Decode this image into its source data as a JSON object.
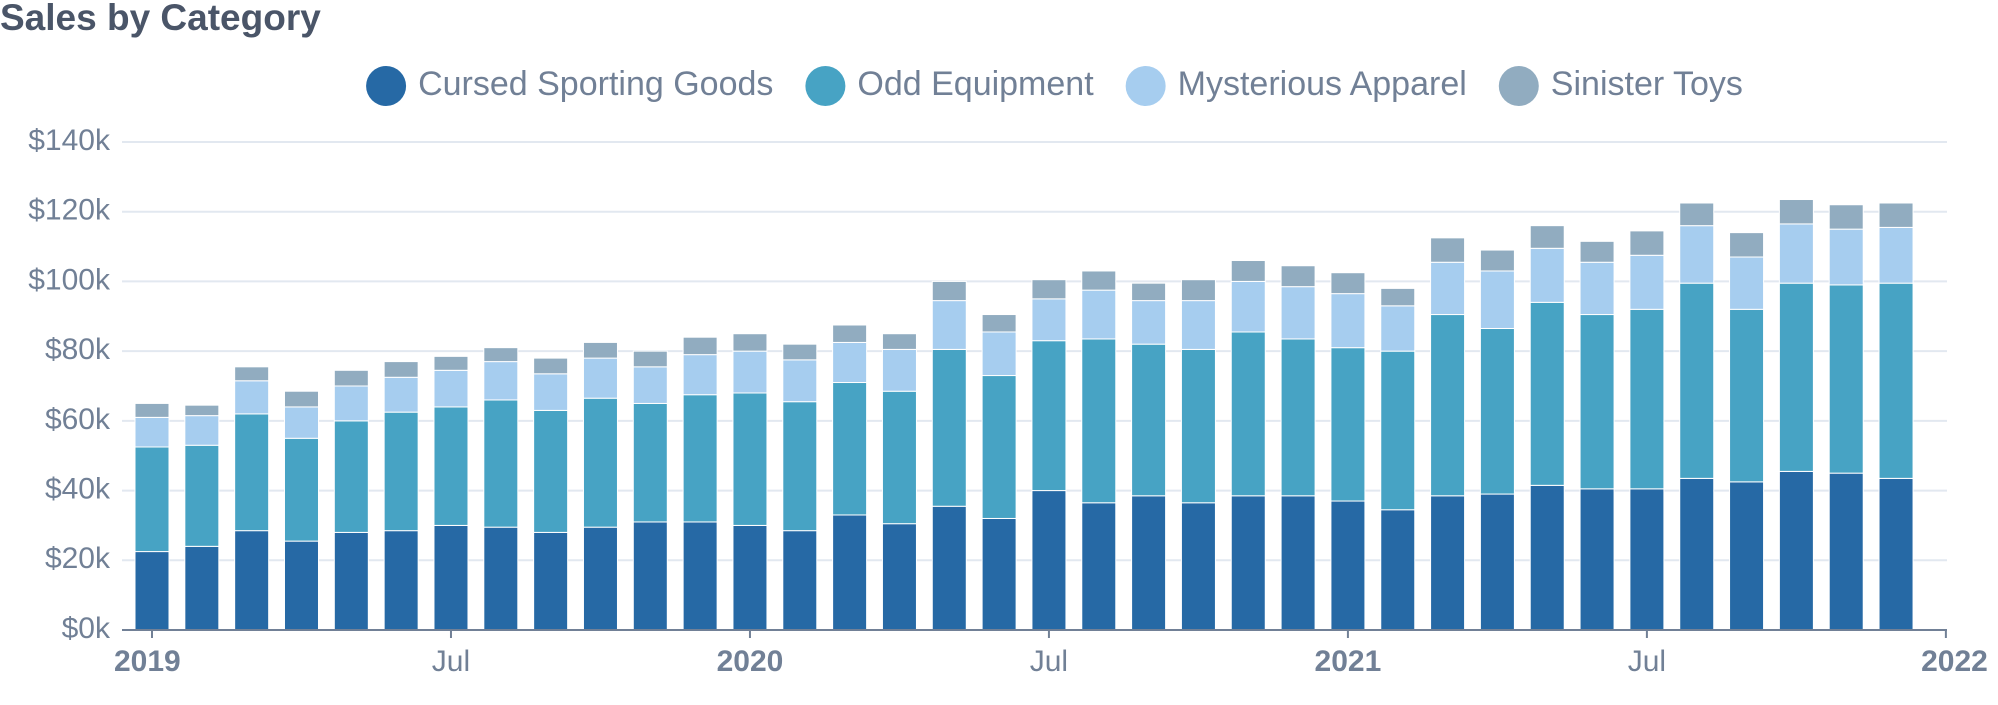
{
  "chart_data": {
    "type": "stacked-bar",
    "title": "Sales by Category",
    "x": [
      "2019-01",
      "2019-02",
      "2019-03",
      "2019-04",
      "2019-05",
      "2019-06",
      "2019-07",
      "2019-08",
      "2019-09",
      "2019-10",
      "2019-11",
      "2019-12",
      "2020-01",
      "2020-02",
      "2020-03",
      "2020-04",
      "2020-05",
      "2020-06",
      "2020-07",
      "2020-08",
      "2020-09",
      "2020-10",
      "2020-11",
      "2020-12",
      "2021-01",
      "2021-02",
      "2021-03",
      "2021-04",
      "2021-05",
      "2021-06",
      "2021-07",
      "2021-08",
      "2021-09",
      "2021-10",
      "2021-11",
      "2021-12"
    ],
    "series": [
      {
        "name": "Cursed Sporting Goods",
        "color": "#2669a5",
        "values": [
          22500,
          24000,
          28500,
          25500,
          28000,
          28500,
          30000,
          29500,
          28000,
          29500,
          31000,
          31000,
          30000,
          28500,
          33000,
          30500,
          35500,
          32000,
          40000,
          36500,
          38500,
          36500,
          38500,
          38500,
          37000,
          34500,
          38500,
          39000,
          41500,
          40500,
          40500,
          43500,
          42500,
          45500,
          45000,
          43500
        ]
      },
      {
        "name": "Odd Equipment",
        "color": "#47a3c4",
        "values": [
          30000,
          29000,
          33500,
          29500,
          32000,
          34000,
          34000,
          36500,
          35000,
          37000,
          34000,
          36500,
          38000,
          37000,
          38000,
          38000,
          45000,
          41000,
          43000,
          47000,
          43500,
          44000,
          47000,
          45000,
          44000,
          45500,
          52000,
          47500,
          52500,
          50000,
          51500,
          56000,
          49500,
          54000,
          54000,
          56000
        ]
      },
      {
        "name": "Mysterious Apparel",
        "color": "#a6cdef",
        "values": [
          8500,
          8500,
          9500,
          9000,
          10000,
          10000,
          10500,
          11000,
          10500,
          11500,
          10500,
          11500,
          12000,
          12000,
          11500,
          12000,
          14000,
          12500,
          12000,
          14000,
          12500,
          14000,
          14500,
          15000,
          15500,
          13000,
          15000,
          16500,
          15500,
          15000,
          15500,
          16500,
          15000,
          17000,
          16000,
          16000
        ]
      },
      {
        "name": "Sinister Toys",
        "color": "#91acc0",
        "values": [
          4000,
          3000,
          4000,
          4500,
          4500,
          4500,
          4000,
          4000,
          4500,
          4500,
          4500,
          5000,
          5000,
          4500,
          5000,
          4500,
          5500,
          5000,
          5500,
          5500,
          5000,
          6000,
          6000,
          6000,
          6000,
          5000,
          7000,
          6000,
          6500,
          6000,
          7000,
          6500,
          7000,
          7000,
          7000,
          7000
        ]
      }
    ],
    "ylim": [
      0,
      140000
    ],
    "yticks": [
      {
        "value": 0,
        "label": "$0k"
      },
      {
        "value": 20000,
        "label": "$20k"
      },
      {
        "value": 40000,
        "label": "$40k"
      },
      {
        "value": 60000,
        "label": "$60k"
      },
      {
        "value": 80000,
        "label": "$80k"
      },
      {
        "value": 100000,
        "label": "$100k"
      },
      {
        "value": 120000,
        "label": "$120k"
      },
      {
        "value": 140000,
        "label": "$140k"
      }
    ],
    "xticks": [
      {
        "value": "2019-01",
        "label": "2019"
      },
      {
        "value": "2019-07",
        "label": "Jul"
      },
      {
        "value": "2020-01",
        "label": "2020"
      },
      {
        "value": "2020-07",
        "label": "Jul"
      },
      {
        "value": "2021-01",
        "label": "2021"
      },
      {
        "value": "2021-07",
        "label": "Jul"
      },
      {
        "value": "2022-01",
        "label": "2022"
      }
    ],
    "grid": true
  }
}
